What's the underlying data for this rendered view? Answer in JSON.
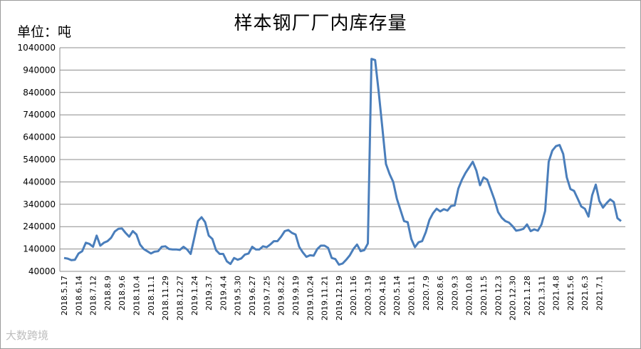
{
  "chart_data": {
    "type": "line",
    "title": "样本钢厂厂内库存量",
    "unit_label": "单位：吨",
    "ylim": [
      40000,
      1040000
    ],
    "yticks": [
      40000,
      140000,
      240000,
      340000,
      440000,
      540000,
      640000,
      740000,
      840000,
      940000,
      1040000
    ],
    "grid": "horizontal",
    "legend": "none",
    "line_color": "#4a7ebb",
    "x_tick_labels": [
      "2018.5.17",
      "2018.6.14",
      "2018.7.12",
      "2018.8.9",
      "2018.9.6",
      "2018.10.4",
      "2018.11.1",
      "2018.11.29",
      "2018.12.27",
      "2019.1.24",
      "2019.3.7",
      "2019.4.4",
      "2019.5.30",
      "2019.6.27",
      "2019.7.25",
      "2019.8.22",
      "2019.9.19",
      "2019.10.24",
      "2019.11.21",
      "2019.12.19",
      "2020.1.16",
      "2020.3.19",
      "2020.4.16",
      "2020.5.14",
      "2020.6.11",
      "2020.7.9",
      "2020.8.6",
      "2020.9.3",
      "2020.10.8",
      "2020.11.5",
      "2020.12.3",
      "2020.12.30",
      "2021.1.28",
      "2021.3.11",
      "2021.4.8",
      "2021.5.6",
      "2021.6.3",
      "2021.7.1"
    ],
    "x_tick_index": [
      0,
      4,
      8,
      12,
      16,
      20,
      24,
      28,
      32,
      36,
      40,
      44,
      48,
      52,
      56,
      60,
      64,
      68,
      72,
      76,
      80,
      84,
      88,
      92,
      96,
      100,
      104,
      108,
      112,
      116,
      120,
      124,
      128,
      132,
      136,
      140,
      144,
      148
    ],
    "values": [
      100000,
      97000,
      90000,
      92000,
      120000,
      130000,
      168000,
      163000,
      150000,
      200000,
      155000,
      168000,
      175000,
      190000,
      218000,
      230000,
      232000,
      212000,
      195000,
      220000,
      205000,
      160000,
      140000,
      130000,
      120000,
      128000,
      130000,
      150000,
      152000,
      140000,
      138000,
      138000,
      136000,
      150000,
      138000,
      118000,
      190000,
      265000,
      282000,
      260000,
      200000,
      185000,
      135000,
      118000,
      118000,
      85000,
      73000,
      100000,
      92000,
      98000,
      115000,
      120000,
      150000,
      138000,
      138000,
      152000,
      148000,
      160000,
      175000,
      175000,
      195000,
      220000,
      225000,
      212000,
      205000,
      150000,
      125000,
      105000,
      112000,
      110000,
      140000,
      155000,
      155000,
      145000,
      100000,
      95000,
      70000,
      75000,
      92000,
      112000,
      140000,
      160000,
      130000,
      135000,
      165000,
      990000,
      985000,
      840000,
      680000,
      520000,
      475000,
      440000,
      365000,
      315000,
      265000,
      260000,
      185000,
      148000,
      170000,
      175000,
      215000,
      270000,
      300000,
      320000,
      308000,
      318000,
      312000,
      332000,
      335000,
      410000,
      450000,
      480000,
      505000,
      530000,
      490000,
      425000,
      460000,
      450000,
      405000,
      360000,
      305000,
      280000,
      265000,
      258000,
      242000,
      222000,
      225000,
      230000,
      250000,
      220000,
      228000,
      222000,
      250000,
      310000,
      530000,
      580000,
      600000,
      605000,
      565000,
      460000,
      408000,
      400000,
      365000,
      330000,
      320000,
      285000,
      380000,
      428000,
      355000,
      325000,
      345000,
      362000,
      350000,
      278000,
      265000
    ]
  },
  "watermark": "大数跨境"
}
